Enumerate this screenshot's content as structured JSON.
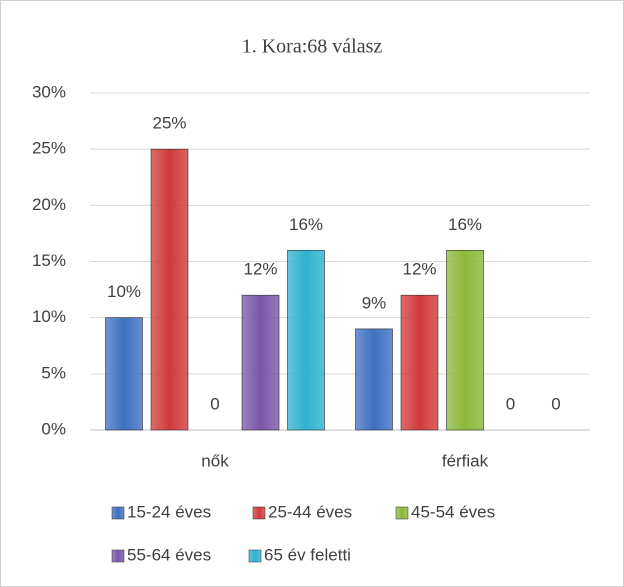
{
  "chart_data": {
    "type": "bar",
    "title": "1. Kora:68 válasz",
    "categories": [
      "nők",
      "férfiak"
    ],
    "series": [
      {
        "name": "15-24 éves",
        "color": "#3f70c2",
        "values": [
          10,
          9
        ],
        "value_labels": [
          "10%",
          "9%"
        ]
      },
      {
        "name": "25-44 éves",
        "color": "#d23a3a",
        "values": [
          25,
          12
        ],
        "value_labels": [
          "25%",
          "12%"
        ]
      },
      {
        "name": "45-54 éves",
        "color": "#8cb83a",
        "values": [
          0,
          16
        ],
        "value_labels": [
          "0",
          "16%"
        ]
      },
      {
        "name": "55-64 éves",
        "color": "#7a57a8",
        "values": [
          12,
          0
        ],
        "value_labels": [
          "12%",
          "0"
        ]
      },
      {
        "name": "65 év feletti",
        "color": "#2fb2cf",
        "values": [
          16,
          0
        ],
        "value_labels": [
          "16%",
          "0"
        ]
      }
    ],
    "ylim": [
      0,
      30
    ],
    "yticks": [
      {
        "value": 0,
        "label": "0%"
      },
      {
        "value": 5,
        "label": "5%"
      },
      {
        "value": 10,
        "label": "10%"
      },
      {
        "value": 15,
        "label": "15%"
      },
      {
        "value": 20,
        "label": "20%"
      },
      {
        "value": 25,
        "label": "25%"
      },
      {
        "value": 30,
        "label": "30%"
      }
    ],
    "grid": true,
    "legend": "bottom"
  }
}
